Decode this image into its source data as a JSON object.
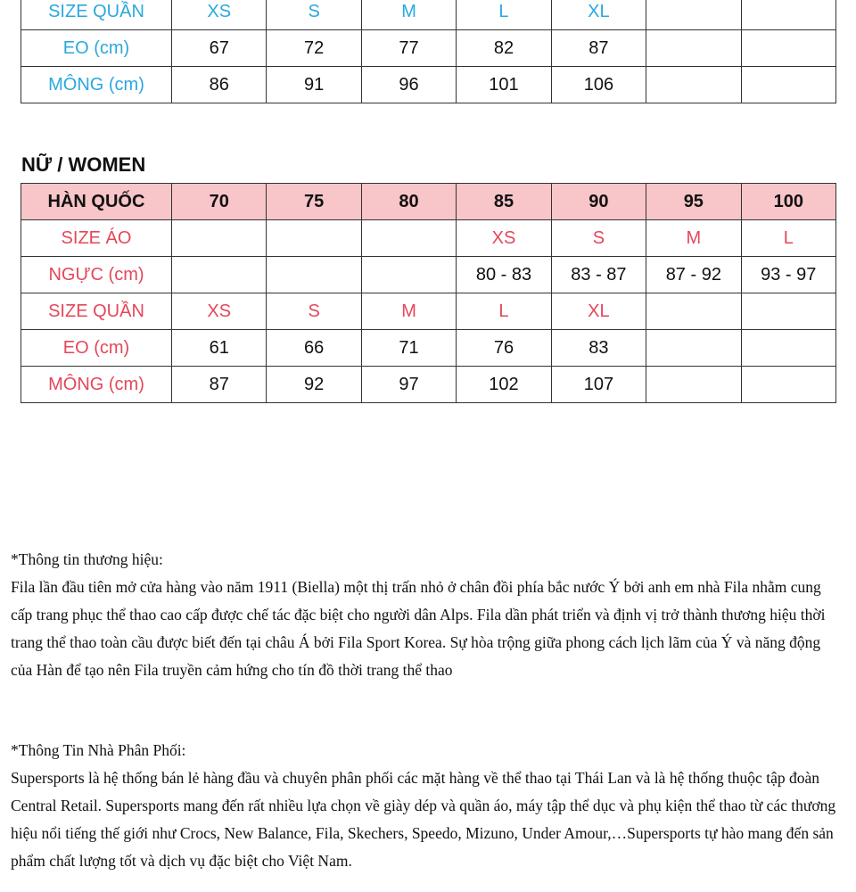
{
  "men_table": {
    "rows": [
      {
        "label": "SIZE QUẦN",
        "cells": [
          "XS",
          "S",
          "M",
          "L",
          "XL",
          "",
          ""
        ]
      },
      {
        "label": "EO (cm)",
        "cells": [
          "67",
          "72",
          "77",
          "82",
          "87",
          "",
          ""
        ]
      },
      {
        "label": "MÔNG (cm)",
        "cells": [
          "86",
          "91",
          "96",
          "101",
          "106",
          "",
          ""
        ]
      }
    ]
  },
  "women": {
    "title": "NỮ / WOMEN",
    "header": {
      "label": "HÀN QUỐC",
      "cells": [
        "70",
        "75",
        "80",
        "85",
        "90",
        "95",
        "100"
      ]
    },
    "rows": [
      {
        "label": "SIZE ÁO",
        "cells": [
          "",
          "",
          "",
          "XS",
          "S",
          "M",
          "L"
        ]
      },
      {
        "label": "NGỰC (cm)",
        "cells": [
          "",
          "",
          "",
          "80 - 83",
          "83 - 87",
          "87 - 92",
          "93 - 97"
        ]
      },
      {
        "label": "SIZE QUẦN",
        "cells": [
          "XS",
          "S",
          "M",
          "L",
          "XL",
          "",
          ""
        ]
      },
      {
        "label": "EO (cm)",
        "cells": [
          "61",
          "66",
          "71",
          "76",
          "83",
          "",
          ""
        ]
      },
      {
        "label": "MÔNG (cm)",
        "cells": [
          "87",
          "92",
          "97",
          "102",
          "107",
          "",
          ""
        ]
      }
    ]
  },
  "brand_info": {
    "heading": "*Thông tin thương hiệu:",
    "body": "Fila lần đầu tiên mở cửa hàng vào năm 1911 (Biella) một thị trấn nhỏ ở chân đồi phía bắc nước Ý bởi anh em nhà Fila nhằm cung cấp trang phục thể thao cao cấp được chế tác đặc biệt cho người dân Alps. Fila dần phát triển và định vị trở thành thương hiệu thời trang thể thao toàn cầu được biết đến tại châu Á bởi Fila Sport Korea. Sự hòa trộng giữa phong cách lịch lãm của Ý và năng động của Hàn để tạo nên Fila truyền cảm hứng cho tín đồ thời trang thể thao"
  },
  "distributor_info": {
    "heading": "*Thông Tin Nhà Phân Phối:",
    "body": "Supersports là hệ thống bán lẻ hàng đầu và chuyên phân phối các mặt hàng về thể thao tại Thái Lan và là hệ thống thuộc tập đoàn Central Retail. Supersports mang đến rất nhiều lựa chọn về giày dép và quần áo, máy tập thể dục và phụ kiện thể thao từ các thương hiệu nổi tiếng thế giới như Crocs, New Balance, Fila, Skechers, Speedo, Mizuno, Under Amour,…Supersports tự hào mang đến sản phẩm chất lượng tốt và dịch vụ đặc biệt cho Việt Nam."
  },
  "colors": {
    "label_blue": "#2aa8de",
    "label_red": "#e5465a",
    "header_pink": "#f8c5c8"
  }
}
